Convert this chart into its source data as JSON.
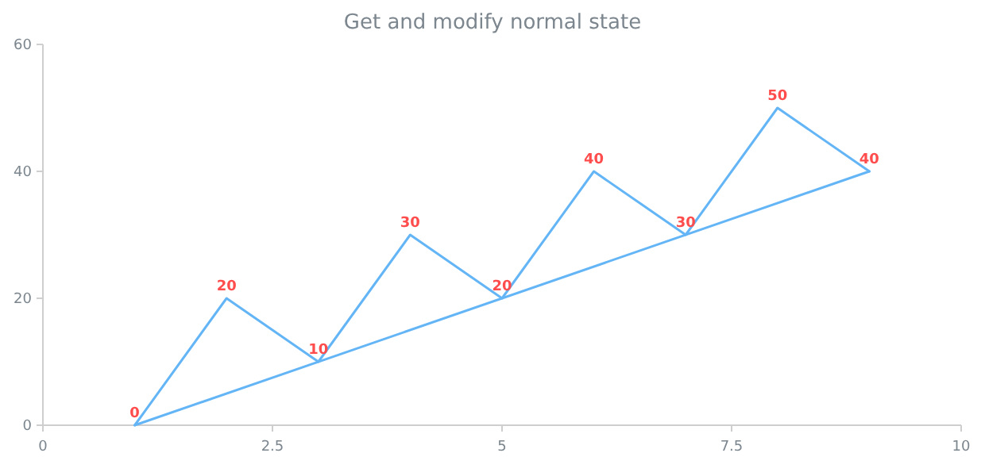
{
  "chart_data": {
    "type": "line",
    "title": "Get and modify normal state",
    "x": [
      1,
      2,
      3,
      4,
      5,
      6,
      7,
      8,
      9
    ],
    "series": [
      {
        "color": "#64b5f6",
        "values": [
          0,
          20,
          10,
          30,
          20,
          40,
          30,
          50,
          40
        ]
      },
      {
        "color": "#64b5f6",
        "x": [
          1,
          9
        ],
        "values": [
          0,
          40
        ]
      }
    ],
    "value_labels": [
      "0",
      "20",
      "10",
      "30",
      "20",
      "40",
      "30",
      "50",
      "40"
    ],
    "xlim": [
      0,
      10
    ],
    "xticks": [
      0,
      2.5,
      5,
      7.5,
      10
    ],
    "ylim": [
      0,
      60
    ],
    "yticks": [
      0,
      20,
      40,
      60
    ],
    "grid": false
  }
}
